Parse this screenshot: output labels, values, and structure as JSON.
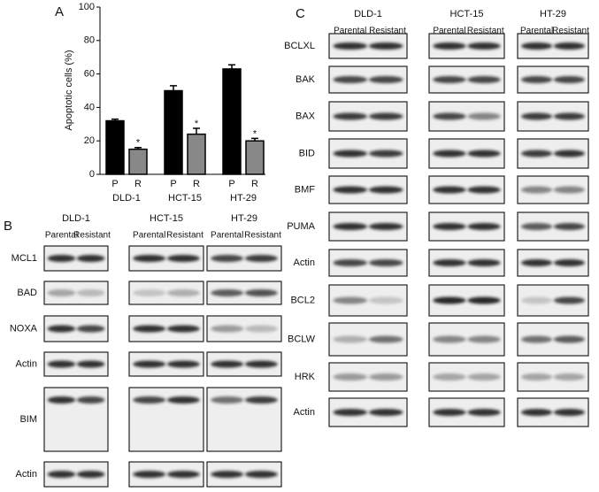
{
  "chart_data": {
    "type": "bar",
    "panel_label": "A",
    "y_label": "Apoptotic cells (%)",
    "categories": [
      "DLD-1",
      "HCT-15",
      "HT-29"
    ],
    "series": [
      {
        "name": "P",
        "color": "#000000",
        "values": [
          32,
          50,
          63
        ],
        "errors": [
          1,
          3,
          2.5
        ]
      },
      {
        "name": "R",
        "color": "#888888",
        "values": [
          15,
          24,
          20
        ],
        "errors": [
          1,
          3.5,
          1.5
        ],
        "annotations": [
          "*",
          "*",
          "*"
        ]
      }
    ],
    "ylim": [
      0,
      100
    ],
    "yticks": [
      0,
      20,
      40,
      60,
      80,
      100
    ]
  },
  "panel_b": {
    "label": "B",
    "cell_lines": [
      "DLD-1",
      "HCT-15",
      "HT-29"
    ],
    "conditions": [
      "Parental",
      "Resistant"
    ],
    "rows": [
      "MCL1",
      "BAD",
      "NOXA",
      "Actin",
      "BIM",
      "Actin"
    ]
  },
  "panel_c": {
    "label": "C",
    "cell_lines": [
      "DLD-1",
      "HCT-15",
      "HT-29"
    ],
    "conditions": [
      "Parental",
      "Resistant"
    ],
    "rows": [
      "BCLXL",
      "BAK",
      "BAX",
      "BID",
      "BMF",
      "PUMA",
      "Actin",
      "BCL2",
      "BCLW",
      "HRK",
      "Actin"
    ]
  }
}
